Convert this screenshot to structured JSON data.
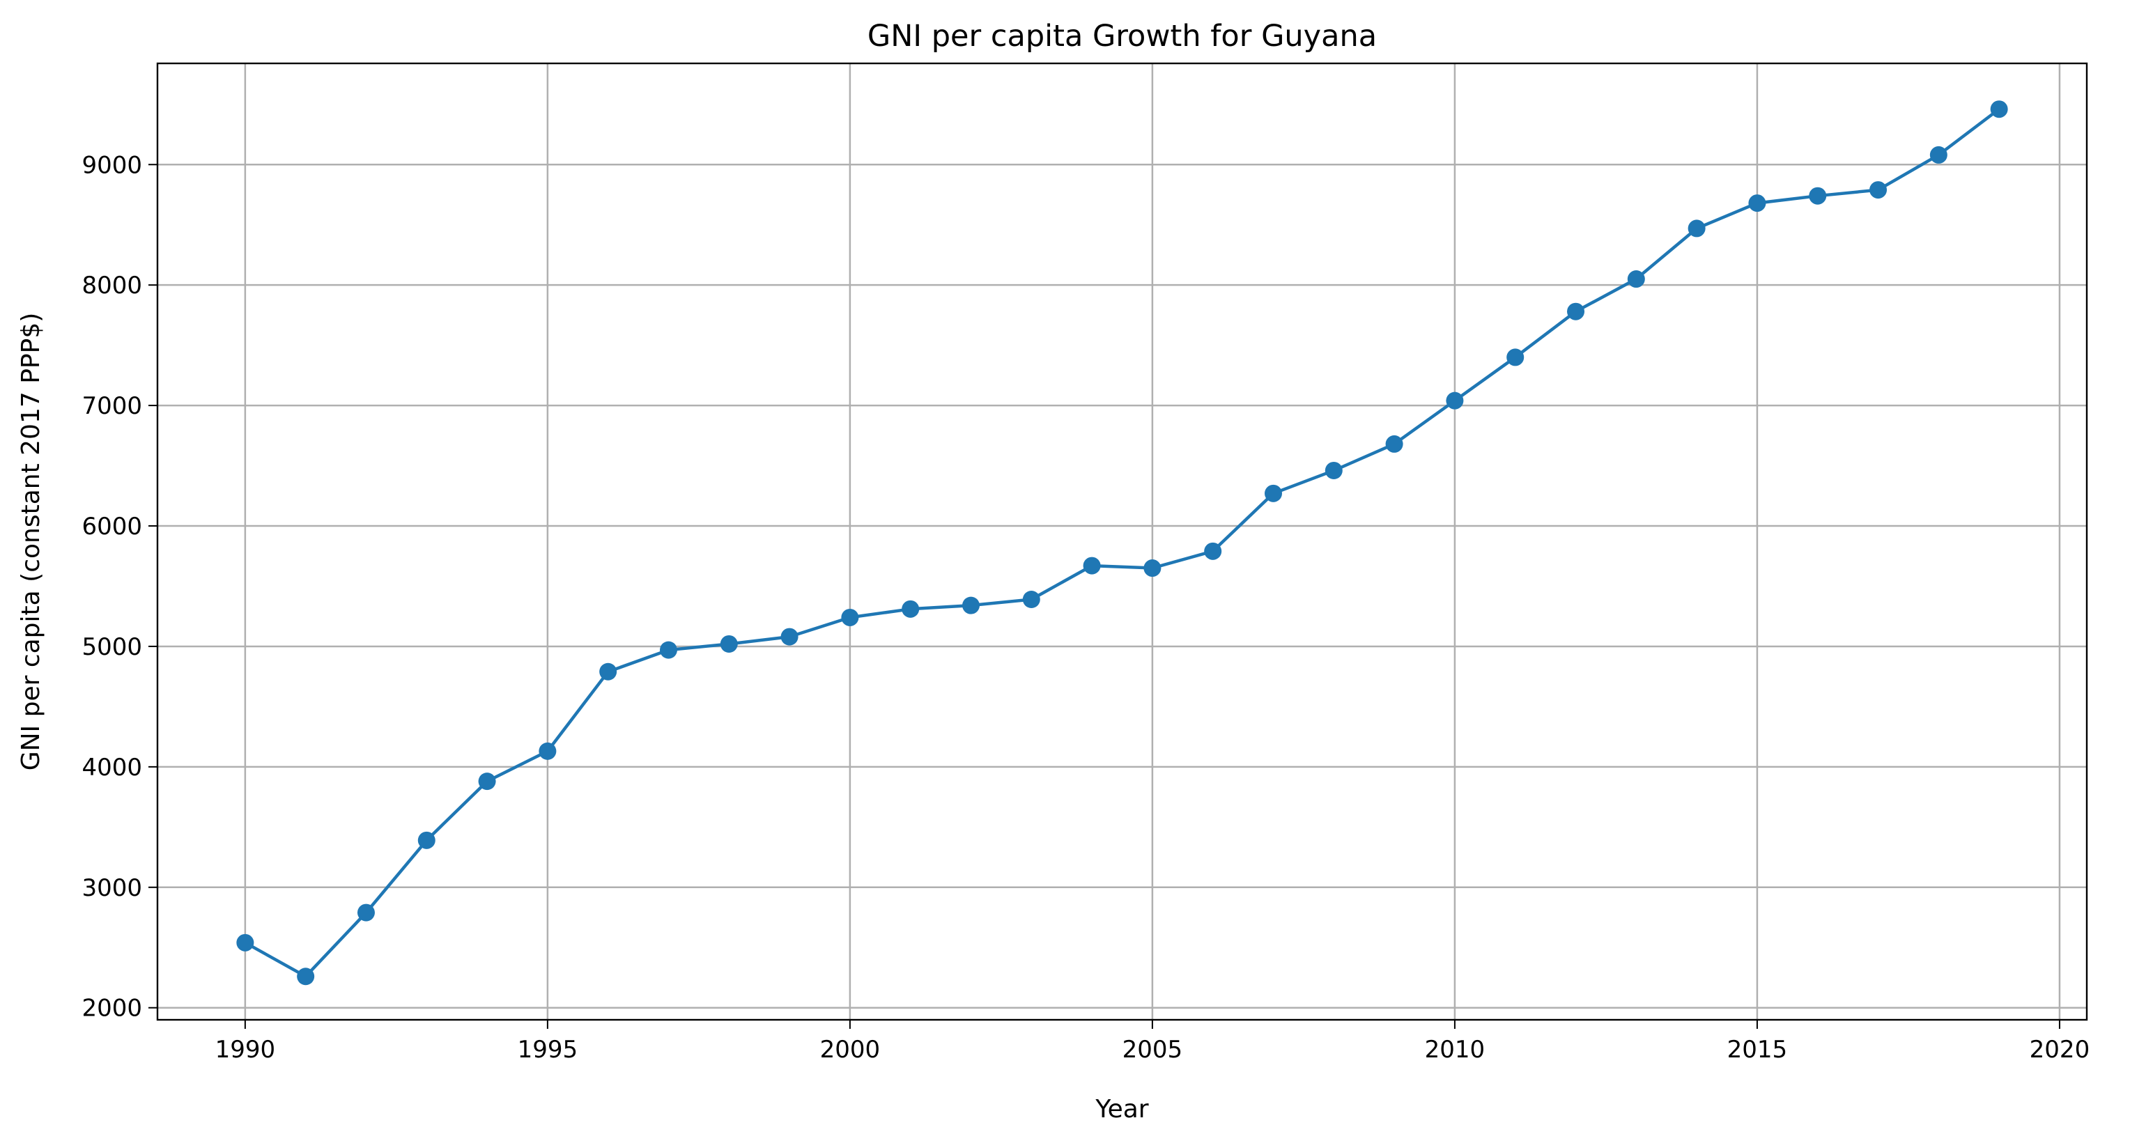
{
  "chart_data": {
    "type": "line",
    "title": "GNI per capita Growth for Guyana",
    "xlabel": "Year",
    "ylabel": "GNI per capita (constant 2017 PPP$)",
    "xlim": [
      1988.55,
      2020.45
    ],
    "ylim": [
      1900,
      9840
    ],
    "xticks": [
      1990,
      1995,
      2000,
      2005,
      2010,
      2015,
      2020
    ],
    "yticks": [
      2000,
      3000,
      4000,
      5000,
      6000,
      7000,
      8000,
      9000
    ],
    "grid": true,
    "colors": {
      "series": "#1f77b4",
      "grid": "#b0b0b0",
      "axes": "#000000"
    },
    "series": [
      {
        "marker": "circle",
        "x": [
          1990,
          1991,
          1992,
          1993,
          1994,
          1995,
          1996,
          1997,
          1998,
          1999,
          2000,
          2001,
          2002,
          2003,
          2004,
          2005,
          2006,
          2007,
          2008,
          2009,
          2010,
          2011,
          2012,
          2013,
          2014,
          2015,
          2016,
          2017,
          2018,
          2019
        ],
        "values": [
          2540,
          2260,
          2790,
          3390,
          3880,
          4130,
          4790,
          4970,
          5020,
          5080,
          5240,
          5310,
          5340,
          5390,
          5670,
          5650,
          5790,
          6270,
          6460,
          6680,
          7040,
          7400,
          7780,
          8050,
          8470,
          8680,
          8740,
          8790,
          9080,
          9460
        ]
      }
    ]
  }
}
